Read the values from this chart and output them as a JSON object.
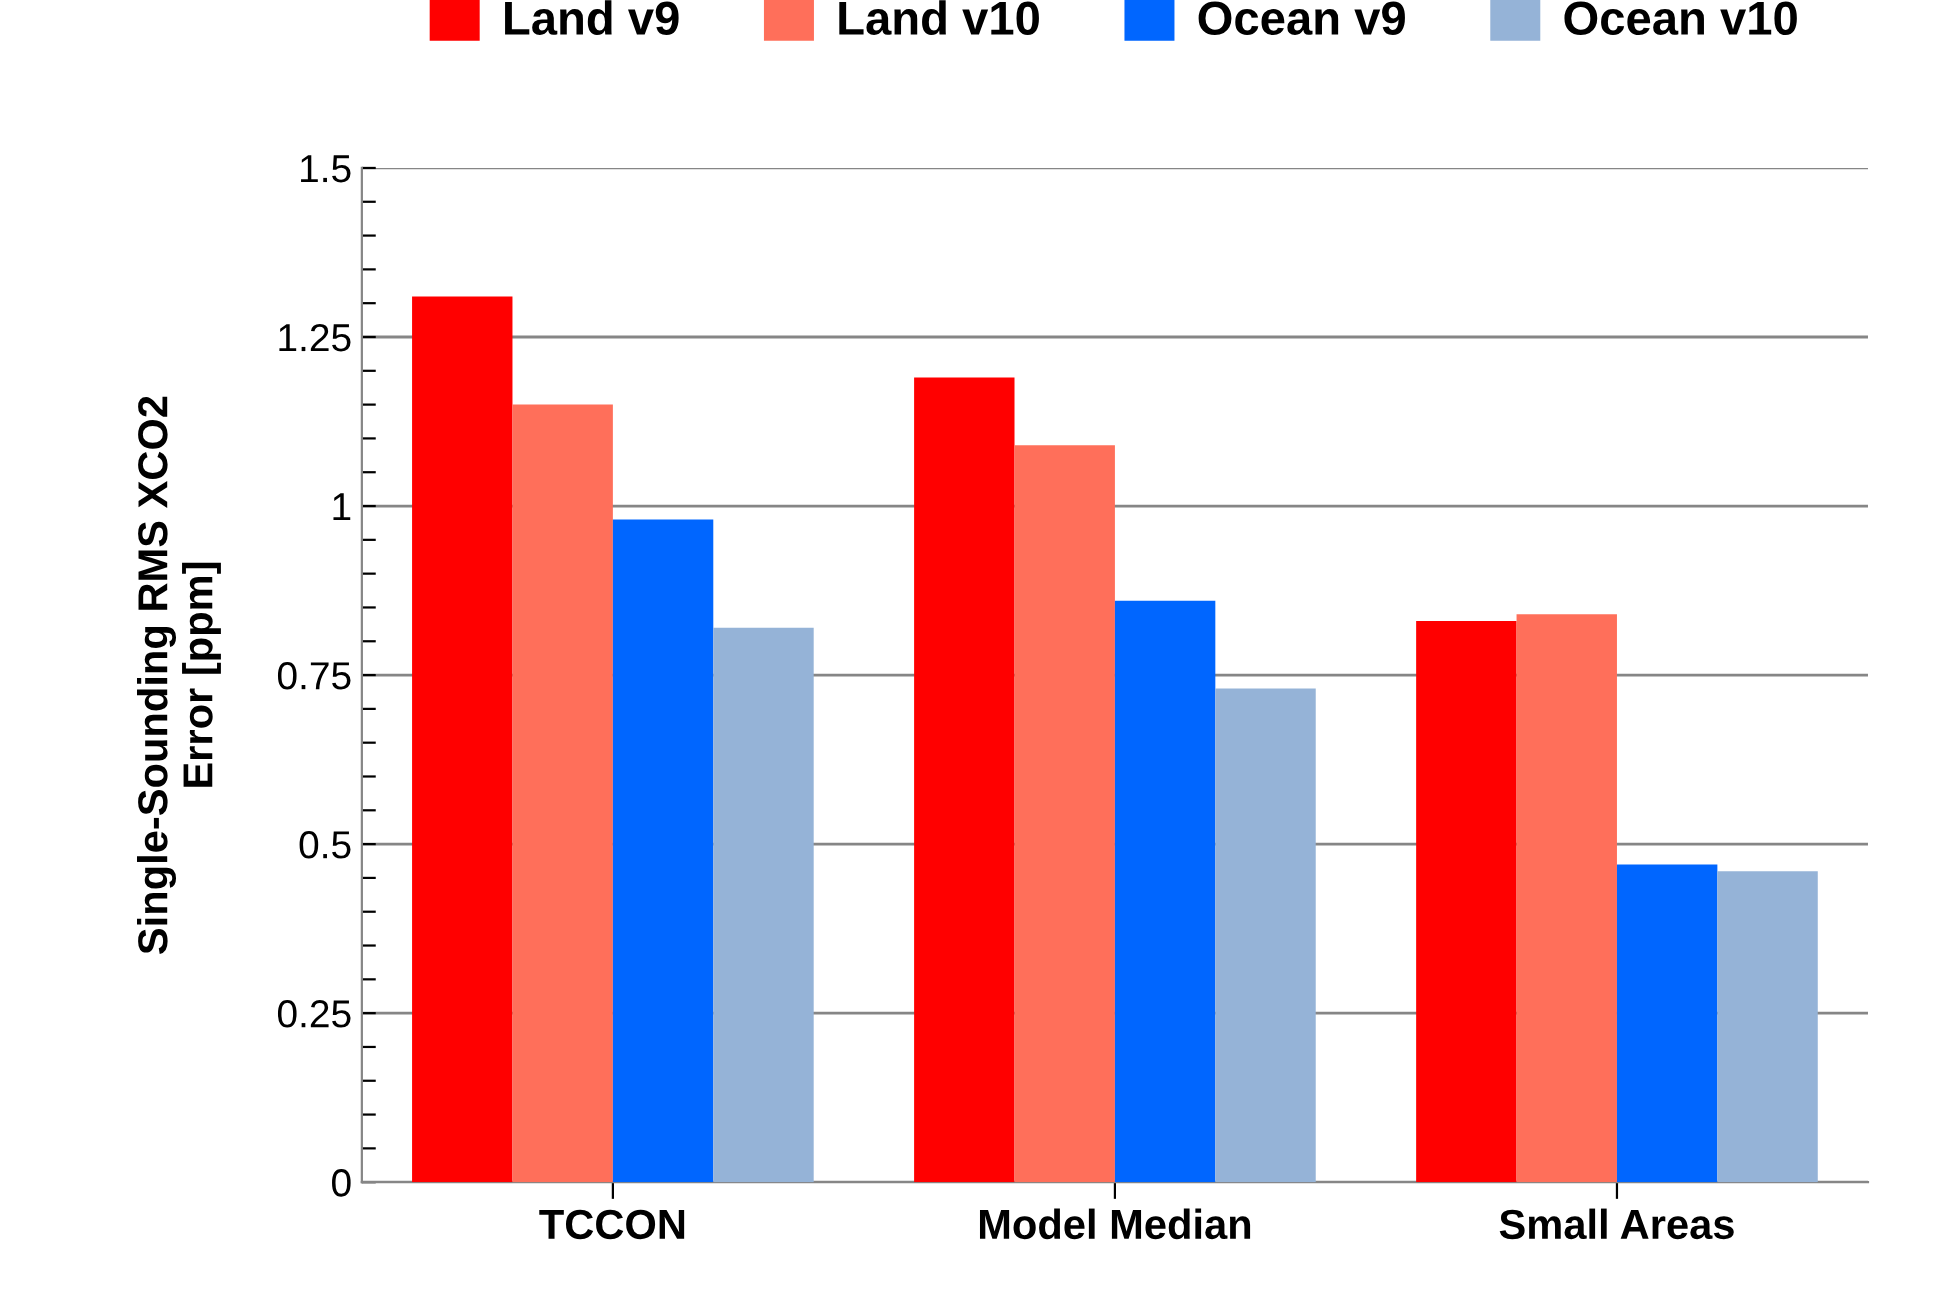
{
  "chart_data": {
    "type": "bar",
    "ylabel": "Single-Sounding RMS XCO2\nError [ppm]",
    "categories": [
      "TCCON",
      "Model Median",
      "Small Areas"
    ],
    "series": [
      {
        "name": "Land v9",
        "color": "#ff0000",
        "values": [
          1.31,
          1.19,
          0.83
        ]
      },
      {
        "name": "Land v10",
        "color": "#ff6f5a",
        "values": [
          1.15,
          1.09,
          0.84
        ]
      },
      {
        "name": "Ocean v9",
        "color": "#0066ff",
        "values": [
          0.98,
          0.86,
          0.47
        ]
      },
      {
        "name": "Ocean v10",
        "color": "#95b3d7",
        "values": [
          0.82,
          0.73,
          0.46
        ]
      }
    ],
    "ylim": [
      0,
      1.5
    ],
    "yticks": [
      0,
      {
        "value": 0.05,
        "label": null
      },
      {
        "value": 0.1,
        "label": null
      },
      {
        "value": 0.15,
        "label": null
      },
      {
        "value": 0.2,
        "label": null
      },
      0.25,
      {
        "value": 0.3,
        "label": null
      },
      {
        "value": 0.35,
        "label": null
      },
      {
        "value": 0.4,
        "label": null
      },
      {
        "value": 0.45,
        "label": null
      },
      0.5,
      {
        "value": 0.55,
        "label": null
      },
      {
        "value": 0.6,
        "label": null
      },
      {
        "value": 0.65,
        "label": null
      },
      {
        "value": 0.7,
        "label": null
      },
      0.75,
      {
        "value": 0.8,
        "label": null
      },
      {
        "value": 0.85,
        "label": null
      },
      {
        "value": 0.9,
        "label": null
      },
      {
        "value": 0.95,
        "label": null
      },
      1,
      {
        "value": 1.05,
        "label": null
      },
      {
        "value": 1.1,
        "label": null
      },
      {
        "value": 1.15,
        "label": null
      },
      {
        "value": 1.2,
        "label": null
      },
      1.25,
      {
        "value": 1.3,
        "label": null
      },
      {
        "value": 1.35,
        "label": null
      },
      {
        "value": 1.4,
        "label": null
      },
      {
        "value": 1.45,
        "label": null
      },
      1.5
    ],
    "grid": "y",
    "legend": "top"
  }
}
